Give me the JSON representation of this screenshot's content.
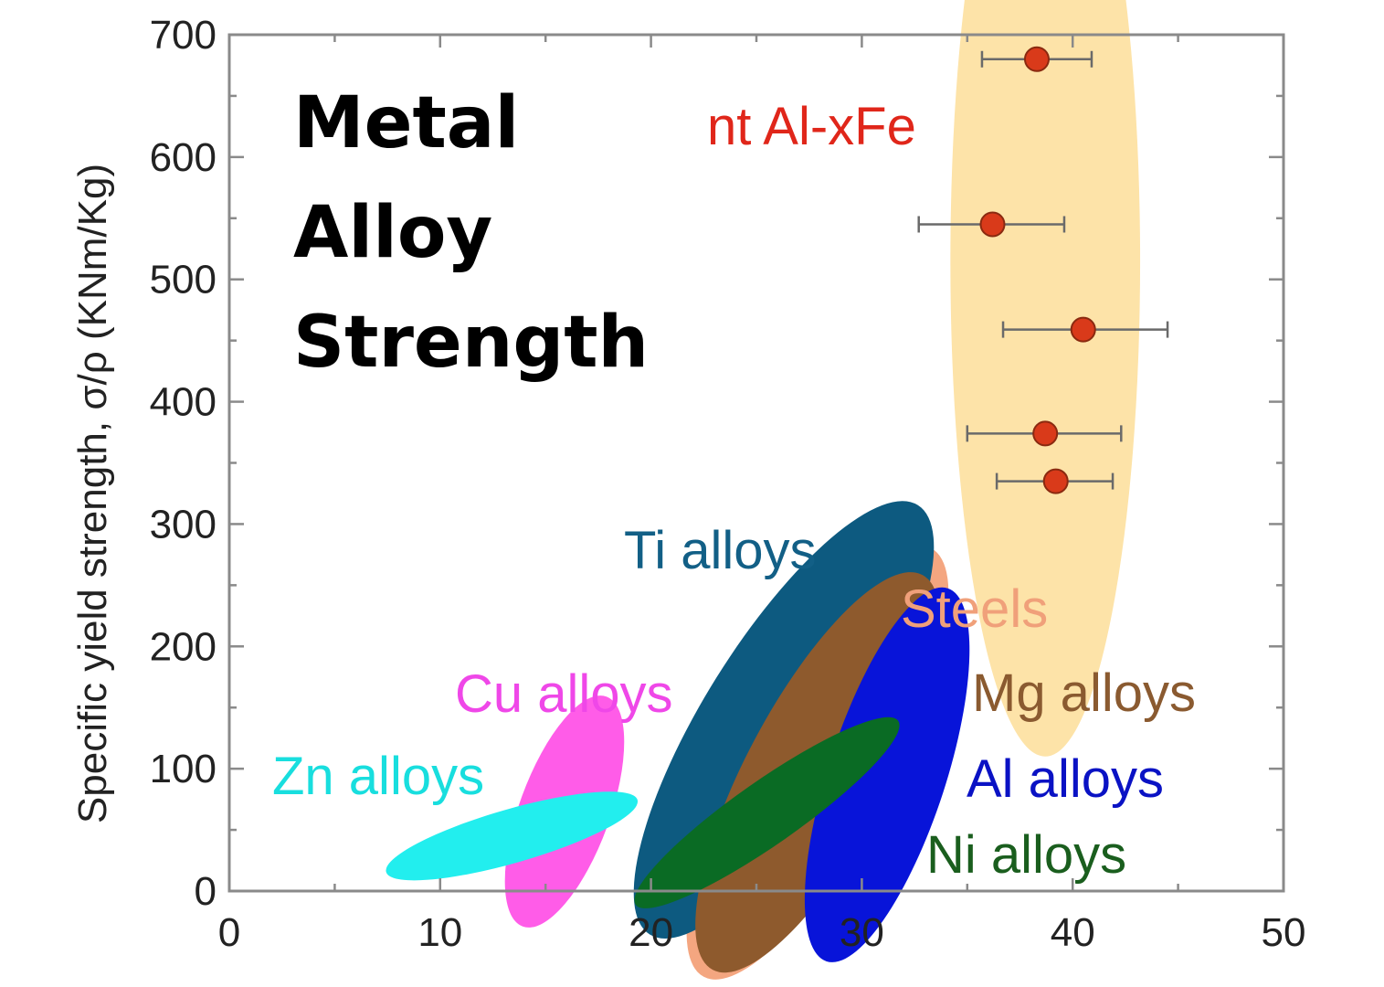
{
  "chart_data": {
    "type": "scatter",
    "title_lines": [
      "Metal",
      "Alloy",
      "Strength"
    ],
    "xlabel": "",
    "ylabel": "Specific yield strength, σ/ρ (KNm/Kg)",
    "xlim": [
      0,
      50
    ],
    "ylim": [
      0,
      700
    ],
    "x_ticks": [
      "0",
      "10",
      "20",
      "30",
      "40",
      "50"
    ],
    "y_ticks": [
      "0",
      "100",
      "200",
      "300",
      "400",
      "500",
      "600",
      "700"
    ],
    "grid": false,
    "series": [
      {
        "name": "nt Al-xFe",
        "color": "#d93a1a",
        "points": [
          {
            "x": 38.3,
            "y": 680,
            "xerr_low": 2.6,
            "xerr_high": 2.6
          },
          {
            "x": 36.2,
            "y": 545,
            "xerr_low": 3.5,
            "xerr_high": 3.4
          },
          {
            "x": 40.5,
            "y": 459,
            "xerr_low": 3.8,
            "xerr_high": 4.0
          },
          {
            "x": 38.7,
            "y": 374,
            "xerr_low": 3.7,
            "xerr_high": 3.6
          },
          {
            "x": 39.2,
            "y": 335,
            "xerr_low": 2.8,
            "xerr_high": 2.7
          }
        ]
      }
    ],
    "regions": [
      {
        "name": "nt Al-xFe",
        "label": "nt Al-xFe",
        "fill": "#fde3a8",
        "text_color": "#e0261a",
        "cx": 38.7,
        "cy": 515,
        "x_halfwidth": 4.5,
        "y_halfheight": 405,
        "angle": 0
      },
      {
        "name": "Steels",
        "label": "Steels",
        "fill": "#f4a680",
        "text_color": "#f0a07a",
        "cx": 27.9,
        "cy": 105,
        "x_halfwidth": 11.5,
        "y_halfheight": 60,
        "angle": -62
      },
      {
        "name": "Ti alloys",
        "label": "Ti alloys",
        "fill": "#0d5a80",
        "text_color": "#125f86",
        "cx": 26.3,
        "cy": 140,
        "x_halfwidth": 12.0,
        "y_halfheight": 65,
        "angle": -58
      },
      {
        "name": "Mg alloys",
        "label": "Mg alloys",
        "fill": "#8e5a2d",
        "text_color": "#8a5a30",
        "cx": 27.9,
        "cy": 97,
        "x_halfwidth": 10.6,
        "y_halfheight": 58,
        "angle": -62
      },
      {
        "name": "Al alloys",
        "label": "Al alloys",
        "fill": "#0814d9",
        "text_color": "#0a12c4",
        "cx": 31.2,
        "cy": 95,
        "x_halfwidth": 9.3,
        "y_halfheight": 48,
        "angle": -72
      },
      {
        "name": "Ni alloys",
        "label": "Ni alloys",
        "fill": "#0a6b24",
        "text_color": "#1a5e1e",
        "cx": 25.5,
        "cy": 64,
        "x_halfwidth": 7.6,
        "y_halfheight": 26,
        "angle": -35
      },
      {
        "name": "Cu alloys",
        "label": "Cu alloys",
        "fill": "#ff5ce8",
        "text_color": "#ef47e8",
        "cx": 15.9,
        "cy": 65,
        "x_halfwidth": 5.8,
        "y_halfheight": 37,
        "angle": -70
      },
      {
        "name": "Zn alloys",
        "label": "Zn alloys",
        "fill": "#22eeee",
        "text_color": "#18dede",
        "cx": 13.4,
        "cy": 45,
        "x_halfwidth": 6.2,
        "y_halfheight": 22,
        "angle": -16
      }
    ]
  }
}
